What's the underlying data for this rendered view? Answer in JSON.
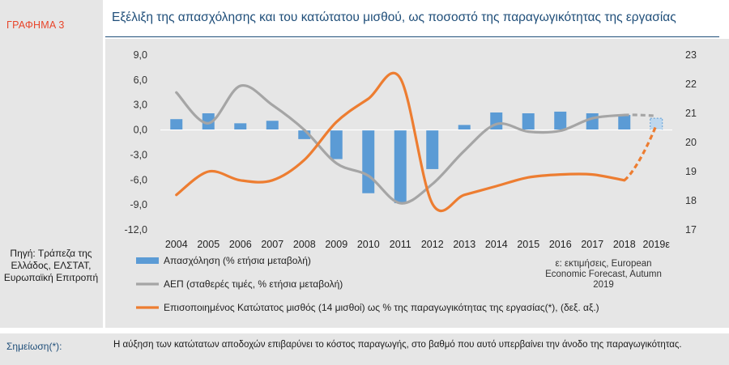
{
  "graph_label": "ΓΡΑΦΗΜΑ 3",
  "title": "Εξέλιξη της απασχόλησης και του κατώτατου μισθού, ως ποσοστό της παραγωγικότητας της εργασίας",
  "source": "Πηγή: Τράπεζα της Ελλάδος, ΕΛΣΤΑΤ, Ευρωπαϊκή Επιτροπή",
  "estimate_note": "ε: εκτιμήσεις, European Economic Forecast, Autumn 2019",
  "note_label": "Σημείωση(*):",
  "note_text": "Η αύξηση των κατώτατων αποδοχών επιβαρύνει το κόστος παραγωγής, στο βαθμό που αυτό υπερβαίνει την άνοδο της παραγωγικότητας.",
  "colors": {
    "bar": "#5b9bd5",
    "gdp": "#a5a5a5",
    "wage": "#ed7d31",
    "title": "#1f4e79",
    "label": "#e8452a"
  },
  "chart_data": {
    "type": "combo",
    "categories": [
      "2004",
      "2005",
      "2006",
      "2007",
      "2008",
      "2009",
      "2010",
      "2011",
      "2012",
      "2013",
      "2014",
      "2015",
      "2016",
      "2017",
      "2018",
      "2019ε"
    ],
    "y_left": {
      "range": [
        -12,
        9
      ],
      "ticks": [
        "9,0",
        "6,0",
        "3,0",
        "0,0",
        "-3,0",
        "-6,0",
        "-9,0",
        "-12,0"
      ]
    },
    "y_right": {
      "range": [
        17,
        23
      ],
      "ticks": [
        "23",
        "22",
        "21",
        "20",
        "19",
        "18",
        "17"
      ]
    },
    "series": [
      {
        "name": "Απασχόληση (% ετήσια μεταβολή)",
        "type": "bar",
        "axis": "left",
        "values": [
          1.3,
          2.0,
          0.8,
          1.1,
          -1.1,
          -3.5,
          -7.6,
          -8.8,
          -4.7,
          0.6,
          2.1,
          2.0,
          2.2,
          2.0,
          1.8,
          1.4
        ]
      },
      {
        "name": "ΑΕΠ (σταθερές τιμές, % ετήσια μεταβολή)",
        "type": "line",
        "axis": "left",
        "values": [
          4.5,
          0.8,
          5.3,
          3.0,
          0.0,
          -4.0,
          -5.5,
          -8.8,
          -6.5,
          -2.5,
          0.7,
          -0.2,
          -0.1,
          1.4,
          1.8,
          1.7
        ]
      },
      {
        "name": "Επισοποιημένος Κατώτατος μισθός (14 μισθοί) ως % της παραγωγικότητας της εργασίας(*), (δεξ. αξ.)",
        "type": "line",
        "axis": "right",
        "values": [
          18.2,
          19.0,
          18.7,
          18.7,
          19.4,
          20.7,
          21.5,
          22.2,
          17.9,
          18.2,
          18.5,
          18.8,
          18.9,
          18.9,
          18.7,
          20.6
        ]
      }
    ]
  }
}
